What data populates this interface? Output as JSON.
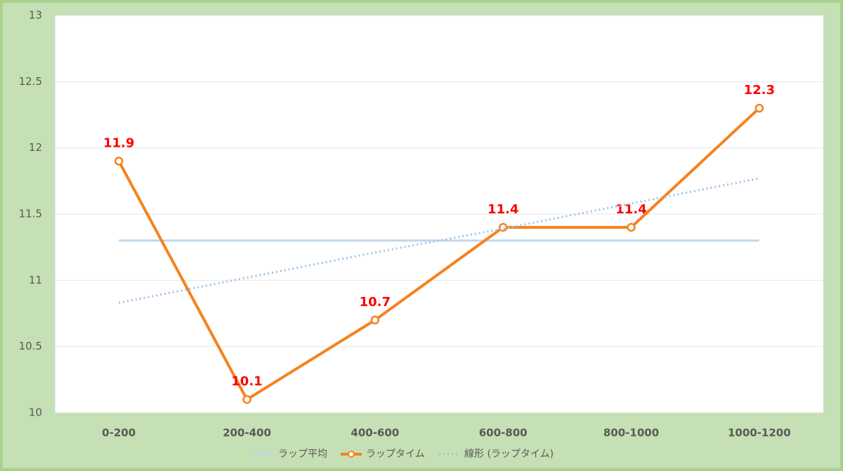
{
  "chart_data": {
    "type": "line",
    "categories": [
      "0-200",
      "200-400",
      "400-600",
      "600-800",
      "800-1000",
      "1000-1200"
    ],
    "series": [
      {
        "name": "ラップ平均",
        "color": "#bdd7ee",
        "values": [
          11.3,
          11.3,
          11.3,
          11.3,
          11.3,
          11.3
        ]
      },
      {
        "name": "ラップタイム",
        "color": "#f5821f",
        "values": [
          11.9,
          10.1,
          10.7,
          11.4,
          11.4,
          12.3
        ],
        "markers": true,
        "data_labels": true,
        "label_color": "#ff0000"
      },
      {
        "name": "線形 (ラップタイム)",
        "color": "#9dc3e6",
        "values": [
          10.83,
          11.02,
          11.21,
          11.39,
          11.58,
          11.77
        ],
        "dash": "dotted"
      }
    ],
    "ylim": [
      10,
      13
    ],
    "yticks": [
      10,
      10.5,
      11,
      11.5,
      12,
      12.5,
      13
    ],
    "grid": true,
    "legend": "bottom"
  }
}
